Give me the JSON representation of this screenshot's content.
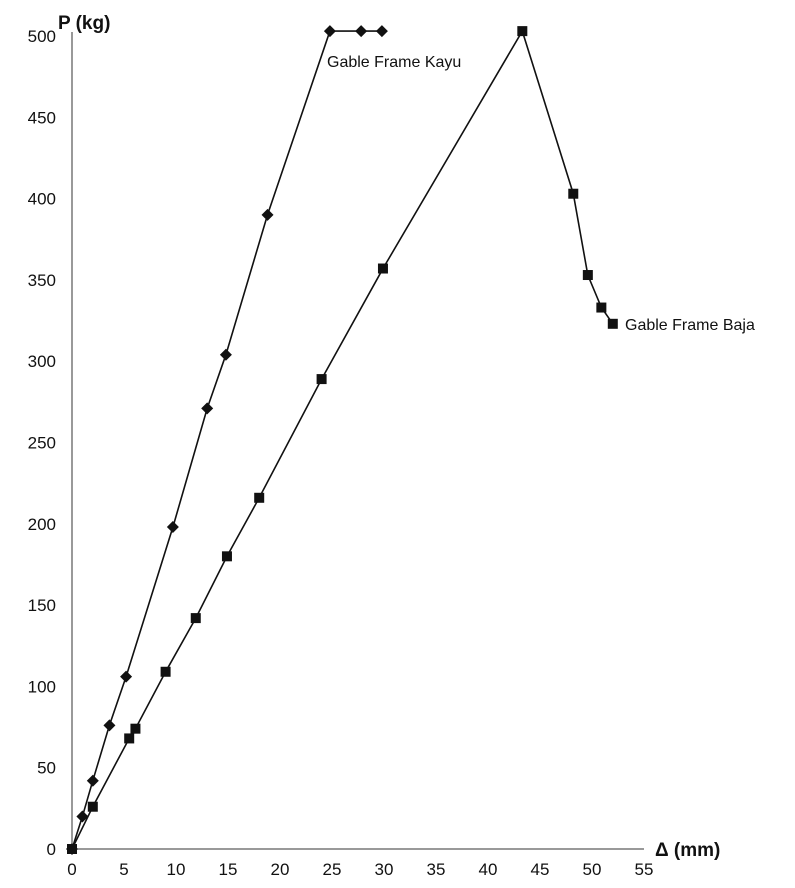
{
  "chart_data": {
    "type": "line",
    "title": "",
    "xlabel": "Δ (mm)",
    "ylabel": "P (kg)",
    "xlim": [
      0,
      55
    ],
    "ylim": [
      0,
      500
    ],
    "x_ticks": [
      0,
      5,
      10,
      15,
      20,
      25,
      30,
      35,
      40,
      45,
      50,
      55
    ],
    "y_ticks": [
      0,
      50,
      100,
      150,
      200,
      250,
      300,
      350,
      400,
      450,
      500
    ],
    "grid": false,
    "legend": "none",
    "series": [
      {
        "name": "Gable Frame Kayu",
        "marker": "diamond",
        "color": "#111111",
        "points": [
          [
            0,
            0
          ],
          [
            1,
            20
          ],
          [
            2,
            42
          ],
          [
            3.6,
            76
          ],
          [
            5.2,
            106
          ],
          [
            9.7,
            198
          ],
          [
            13,
            271
          ],
          [
            14.8,
            304
          ],
          [
            18.8,
            390
          ],
          [
            24.8,
            503
          ],
          [
            27.8,
            503
          ],
          [
            29.8,
            503
          ]
        ]
      },
      {
        "name": "Gable Frame Baja",
        "marker": "square",
        "color": "#111111",
        "points": [
          [
            0,
            0
          ],
          [
            2,
            26
          ],
          [
            5.5,
            68
          ],
          [
            6.1,
            74
          ],
          [
            9,
            109
          ],
          [
            11.9,
            142
          ],
          [
            14.9,
            180
          ],
          [
            18,
            216
          ],
          [
            24,
            289
          ],
          [
            29.9,
            357
          ],
          [
            43.3,
            503
          ],
          [
            48.2,
            403
          ],
          [
            49.6,
            353
          ],
          [
            50.9,
            333
          ],
          [
            52,
            323
          ]
        ]
      }
    ]
  }
}
